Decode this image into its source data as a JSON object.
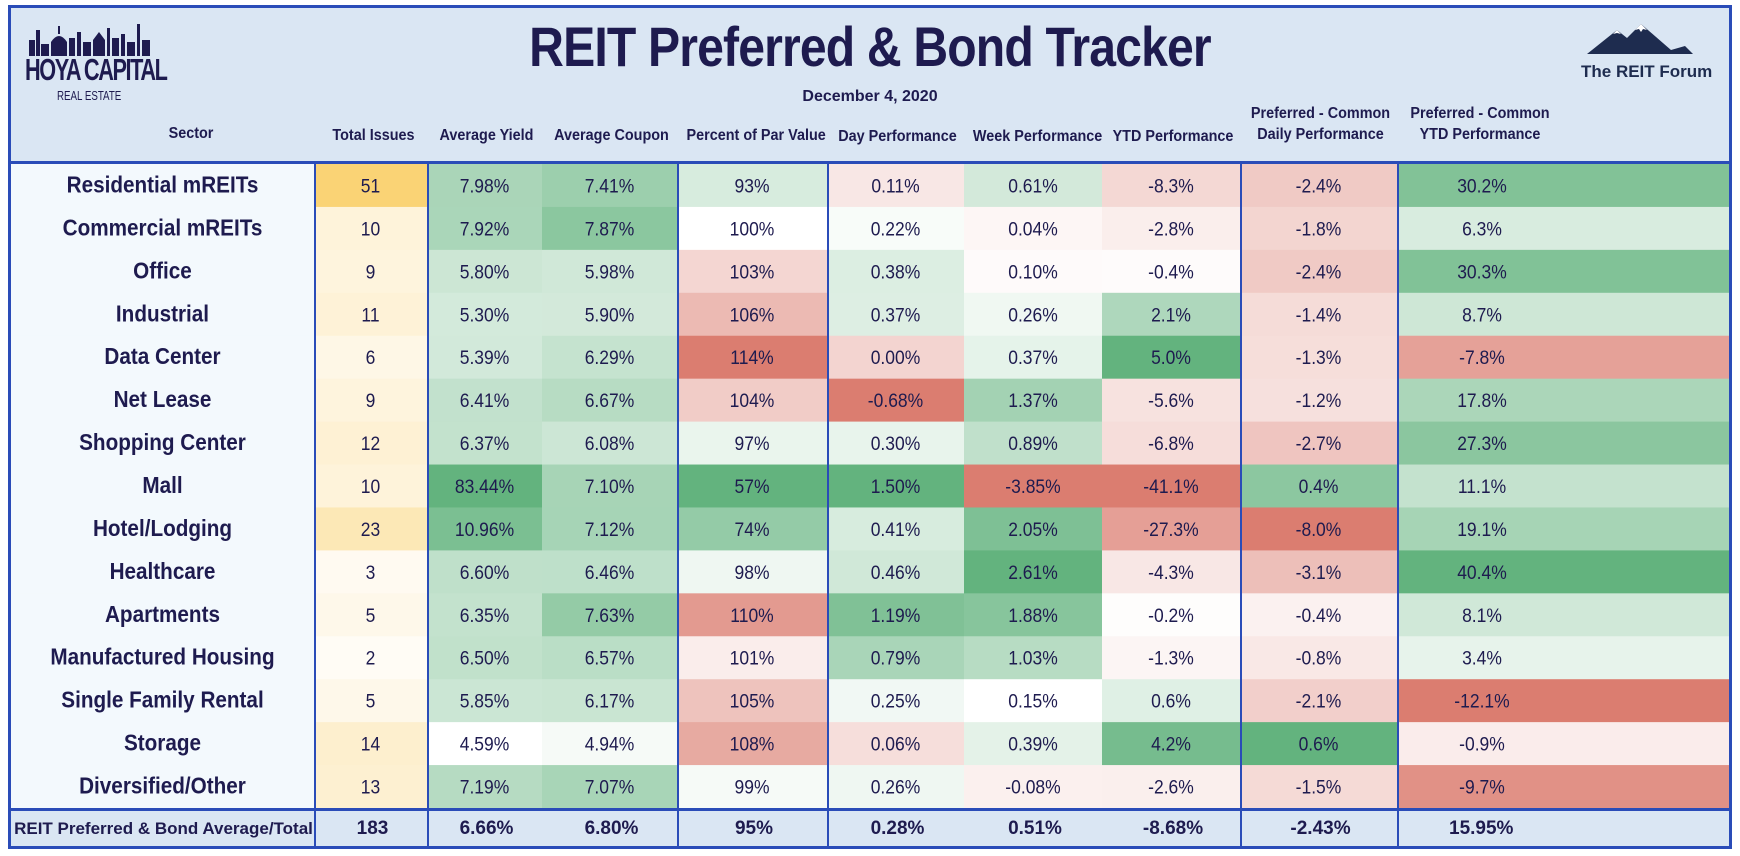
{
  "header": {
    "title": "REIT Preferred & Bond Tracker",
    "date": "December 4, 2020",
    "logo_left_line1": "HOYA CAPITAL",
    "logo_left_line2": "REAL ESTATE",
    "logo_right_text": "The REIT Forum",
    "brand_color": "#1e1b4f",
    "border_color": "#2a4cb8"
  },
  "columns": {
    "sector": "Sector",
    "total_issues": "Total Issues",
    "average_yield": "Average Yield",
    "average_coupon": "Average Coupon",
    "percent_par": "Percent of Par Value",
    "day_perf": "Day Performance",
    "week_perf": "Week Performance",
    "ytd_perf": "YTD Performance",
    "pc_daily_1": "Preferred - Common",
    "pc_daily_2": "Daily Performance",
    "pc_ytd_1": "Preferred - Common",
    "pc_ytd_2": "YTD Performance"
  },
  "chart_data": {
    "type": "table",
    "title": "REIT Preferred & Bond Tracker",
    "columns": [
      "Sector",
      "Total Issues",
      "Average Yield",
      "Average Coupon",
      "Percent of Par Value",
      "Day Performance",
      "Week Performance",
      "YTD Performance",
      "Preferred - Common Daily Performance",
      "Preferred - Common YTD Performance"
    ],
    "rows": [
      {
        "sector": "Residential mREITs",
        "issues": "51",
        "yield": "7.98%",
        "coupon": "7.41%",
        "par": "93%",
        "day": "0.11%",
        "week": "0.61%",
        "ytd": "-8.3%",
        "pc_daily": "-2.4%",
        "pc_ytd": "30.2%"
      },
      {
        "sector": "Commercial mREITs",
        "issues": "10",
        "yield": "7.92%",
        "coupon": "7.87%",
        "par": "100%",
        "day": "0.22%",
        "week": "0.04%",
        "ytd": "-2.8%",
        "pc_daily": "-1.8%",
        "pc_ytd": "6.3%"
      },
      {
        "sector": "Office",
        "issues": "9",
        "yield": "5.80%",
        "coupon": "5.98%",
        "par": "103%",
        "day": "0.38%",
        "week": "0.10%",
        "ytd": "-0.4%",
        "pc_daily": "-2.4%",
        "pc_ytd": "30.3%"
      },
      {
        "sector": "Industrial",
        "issues": "11",
        "yield": "5.30%",
        "coupon": "5.90%",
        "par": "106%",
        "day": "0.37%",
        "week": "0.26%",
        "ytd": "2.1%",
        "pc_daily": "-1.4%",
        "pc_ytd": "8.7%"
      },
      {
        "sector": "Data Center",
        "issues": "6",
        "yield": "5.39%",
        "coupon": "6.29%",
        "par": "114%",
        "day": "0.00%",
        "week": "0.37%",
        "ytd": "5.0%",
        "pc_daily": "-1.3%",
        "pc_ytd": "-7.8%"
      },
      {
        "sector": "Net Lease",
        "issues": "9",
        "yield": "6.41%",
        "coupon": "6.67%",
        "par": "104%",
        "day": "-0.68%",
        "week": "1.37%",
        "ytd": "-5.6%",
        "pc_daily": "-1.2%",
        "pc_ytd": "17.8%"
      },
      {
        "sector": "Shopping Center",
        "issues": "12",
        "yield": "6.37%",
        "coupon": "6.08%",
        "par": "97%",
        "day": "0.30%",
        "week": "0.89%",
        "ytd": "-6.8%",
        "pc_daily": "-2.7%",
        "pc_ytd": "27.3%"
      },
      {
        "sector": "Mall",
        "issues": "10",
        "yield": "83.44%",
        "coupon": "7.10%",
        "par": "57%",
        "day": "1.50%",
        "week": "-3.85%",
        "ytd": "-41.1%",
        "pc_daily": "0.4%",
        "pc_ytd": "11.1%"
      },
      {
        "sector": "Hotel/Lodging",
        "issues": "23",
        "yield": "10.96%",
        "coupon": "7.12%",
        "par": "74%",
        "day": "0.41%",
        "week": "2.05%",
        "ytd": "-27.3%",
        "pc_daily": "-8.0%",
        "pc_ytd": "19.1%"
      },
      {
        "sector": "Healthcare",
        "issues": "3",
        "yield": "6.60%",
        "coupon": "6.46%",
        "par": "98%",
        "day": "0.46%",
        "week": "2.61%",
        "ytd": "-4.3%",
        "pc_daily": "-3.1%",
        "pc_ytd": "40.4%"
      },
      {
        "sector": "Apartments",
        "issues": "5",
        "yield": "6.35%",
        "coupon": "7.63%",
        "par": "110%",
        "day": "1.19%",
        "week": "1.88%",
        "ytd": "-0.2%",
        "pc_daily": "-0.4%",
        "pc_ytd": "8.1%"
      },
      {
        "sector": "Manufactured Housing",
        "issues": "2",
        "yield": "6.50%",
        "coupon": "6.57%",
        "par": "101%",
        "day": "0.79%",
        "week": "1.03%",
        "ytd": "-1.3%",
        "pc_daily": "-0.8%",
        "pc_ytd": "3.4%"
      },
      {
        "sector": "Single Family Rental",
        "issues": "5",
        "yield": "5.85%",
        "coupon": "6.17%",
        "par": "105%",
        "day": "0.25%",
        "week": "0.15%",
        "ytd": "0.6%",
        "pc_daily": "-2.1%",
        "pc_ytd": "-12.1%"
      },
      {
        "sector": "Storage",
        "issues": "14",
        "yield": "4.59%",
        "coupon": "4.94%",
        "par": "108%",
        "day": "0.06%",
        "week": "0.39%",
        "ytd": "4.2%",
        "pc_daily": "0.6%",
        "pc_ytd": "-0.9%"
      },
      {
        "sector": "Diversified/Other",
        "issues": "13",
        "yield": "7.19%",
        "coupon": "7.07%",
        "par": "99%",
        "day": "0.26%",
        "week": "-0.08%",
        "ytd": "-2.6%",
        "pc_daily": "-1.5%",
        "pc_ytd": "-9.7%"
      }
    ],
    "total": {
      "sector": "REIT Preferred & Bond Average/Total",
      "issues": "183",
      "yield": "6.66%",
      "coupon": "6.80%",
      "par": "95%",
      "day": "0.28%",
      "week": "0.51%",
      "ytd": "-8.68%",
      "pc_daily": "-2.43%",
      "pc_ytd": "15.95%"
    },
    "colors": {
      "positive": "#63b37e",
      "negative": "#db7d70",
      "issues_high": "#fad16e",
      "neutral": "#ffffff",
      "sector_bg": "#f3f9fd"
    }
  }
}
